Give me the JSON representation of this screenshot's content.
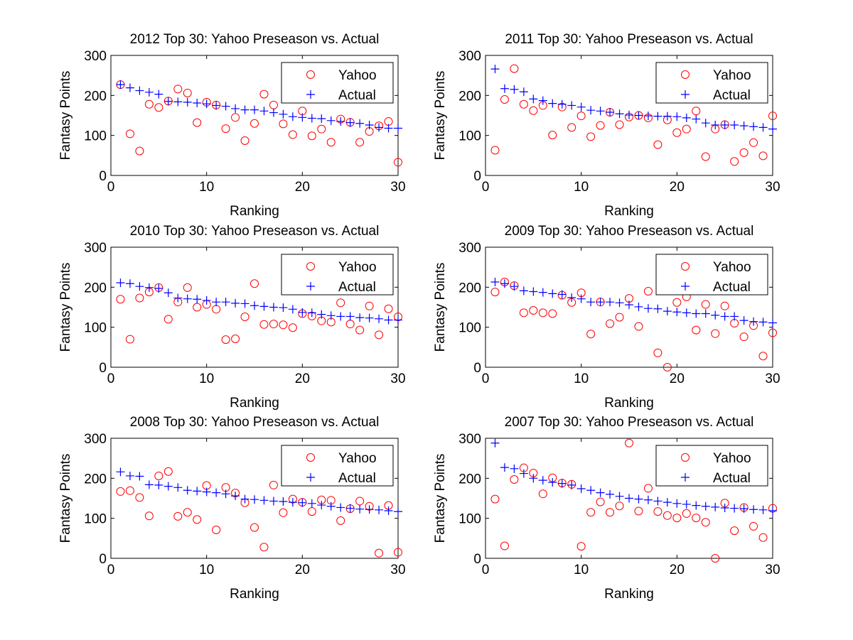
{
  "colors": {
    "yahoo": "#ff0000",
    "actual": "#0000ff",
    "axis": "#000000"
  },
  "chart_data": [
    {
      "type": "scatter",
      "title": "2012 Top 30: Yahoo Preseason vs. Actual",
      "xlabel": "Ranking",
      "ylabel": "Fantasy Points",
      "xlim": [
        0,
        30
      ],
      "ylim": [
        0,
        300
      ],
      "xticks": [
        0,
        10,
        20,
        30
      ],
      "yticks": [
        0,
        100,
        200,
        300
      ],
      "legend": "top-right",
      "x": [
        1,
        2,
        3,
        4,
        5,
        6,
        7,
        8,
        9,
        10,
        11,
        12,
        13,
        14,
        15,
        16,
        17,
        18,
        19,
        20,
        21,
        22,
        23,
        24,
        25,
        26,
        27,
        28,
        29,
        30
      ],
      "series": [
        {
          "name": "Yahoo",
          "marker": "circle",
          "color": "#ff0000",
          "values": [
            227,
            104,
            61,
            178,
            170,
            186,
            216,
            206,
            132,
            183,
            176,
            117,
            145,
            87,
            130,
            203,
            176,
            129,
            102,
            161,
            99,
            116,
            83,
            141,
            133,
            83,
            110,
            124,
            135,
            33
          ]
        },
        {
          "name": "Actual",
          "marker": "plus",
          "color": "#0000ff",
          "values": [
            227,
            219,
            212,
            208,
            203,
            185,
            184,
            183,
            181,
            179,
            175,
            173,
            167,
            164,
            164,
            161,
            157,
            153,
            147,
            145,
            143,
            142,
            137,
            135,
            132,
            130,
            126,
            120,
            118,
            118
          ]
        }
      ]
    },
    {
      "type": "scatter",
      "title": "2011 Top 30: Yahoo Preseason vs. Actual",
      "xlabel": "Ranking",
      "ylabel": "Fantasy Points",
      "xlim": [
        0,
        30
      ],
      "ylim": [
        0,
        300
      ],
      "xticks": [
        0,
        10,
        20,
        30
      ],
      "yticks": [
        0,
        100,
        200,
        300
      ],
      "legend": "top-right",
      "x": [
        1,
        2,
        3,
        4,
        5,
        6,
        7,
        8,
        9,
        10,
        11,
        12,
        13,
        14,
        15,
        16,
        17,
        18,
        19,
        20,
        21,
        22,
        23,
        24,
        25,
        26,
        27,
        28,
        29,
        30
      ],
      "series": [
        {
          "name": "Yahoo",
          "marker": "circle",
          "color": "#ff0000",
          "values": [
            63,
            190,
            267,
            178,
            162,
            175,
            101,
            171,
            120,
            149,
            97,
            125,
            158,
            127,
            146,
            150,
            144,
            77,
            139,
            107,
            116,
            161,
            47,
            116,
            127,
            35,
            57,
            82,
            49,
            149
          ]
        },
        {
          "name": "Actual",
          "marker": "plus",
          "color": "#0000ff",
          "values": [
            266,
            217,
            215,
            209,
            191,
            187,
            180,
            178,
            175,
            171,
            163,
            161,
            158,
            154,
            151,
            150,
            149,
            148,
            148,
            147,
            144,
            141,
            131,
            126,
            126,
            126,
            124,
            122,
            120,
            116
          ]
        }
      ]
    },
    {
      "type": "scatter",
      "title": "2010 Top 30: Yahoo Preseason vs. Actual",
      "xlabel": "Ranking",
      "ylabel": "Fantasy Points",
      "xlim": [
        0,
        30
      ],
      "ylim": [
        0,
        300
      ],
      "xticks": [
        0,
        10,
        20,
        30
      ],
      "yticks": [
        0,
        100,
        200,
        300
      ],
      "legend": "top-right",
      "x": [
        1,
        2,
        3,
        4,
        5,
        6,
        7,
        8,
        9,
        10,
        11,
        12,
        13,
        14,
        15,
        16,
        17,
        18,
        19,
        20,
        21,
        22,
        23,
        24,
        25,
        26,
        27,
        28,
        29,
        30
      ],
      "series": [
        {
          "name": "Yahoo",
          "marker": "circle",
          "color": "#ff0000",
          "values": [
            170,
            70,
            173,
            188,
            199,
            120,
            163,
            199,
            150,
            157,
            145,
            69,
            71,
            126,
            209,
            107,
            108,
            106,
            99,
            134,
            128,
            116,
            113,
            161,
            108,
            93,
            153,
            81,
            146,
            126
          ]
        },
        {
          "name": "Actual",
          "marker": "plus",
          "color": "#0000ff",
          "values": [
            211,
            209,
            202,
            199,
            197,
            186,
            173,
            171,
            170,
            167,
            163,
            163,
            160,
            159,
            154,
            152,
            150,
            149,
            145,
            137,
            136,
            132,
            129,
            127,
            127,
            124,
            123,
            121,
            118,
            118
          ]
        }
      ]
    },
    {
      "type": "scatter",
      "title": "2009 Top 30: Yahoo Preseason vs. Actual",
      "xlabel": "Ranking",
      "ylabel": "Fantasy Points",
      "xlim": [
        0,
        30
      ],
      "ylim": [
        0,
        300
      ],
      "xticks": [
        0,
        10,
        20,
        30
      ],
      "yticks": [
        0,
        100,
        200,
        300
      ],
      "legend": "top-right",
      "x": [
        1,
        2,
        3,
        4,
        5,
        6,
        7,
        8,
        9,
        10,
        11,
        12,
        13,
        14,
        15,
        16,
        17,
        18,
        19,
        20,
        21,
        22,
        23,
        24,
        25,
        26,
        27,
        28,
        29,
        30
      ],
      "series": [
        {
          "name": "Yahoo",
          "marker": "circle",
          "color": "#ff0000",
          "values": [
            188,
            213,
            204,
            136,
            142,
            136,
            134,
            180,
            162,
            186,
            83,
            163,
            109,
            125,
            172,
            102,
            190,
            36,
            0,
            162,
            176,
            93,
            157,
            84,
            153,
            110,
            76,
            104,
            28,
            86
          ]
        },
        {
          "name": "Actual",
          "marker": "plus",
          "color": "#0000ff",
          "values": [
            213,
            209,
            202,
            191,
            189,
            187,
            184,
            182,
            174,
            171,
            163,
            163,
            163,
            161,
            156,
            151,
            147,
            146,
            140,
            138,
            136,
            134,
            134,
            130,
            127,
            127,
            117,
            114,
            113,
            111
          ]
        }
      ]
    },
    {
      "type": "scatter",
      "title": "2008 Top 30: Yahoo Preseason vs. Actual",
      "xlabel": "Ranking",
      "ylabel": "Fantasy Points",
      "xlim": [
        0,
        30
      ],
      "ylim": [
        0,
        300
      ],
      "xticks": [
        0,
        10,
        20,
        30
      ],
      "yticks": [
        0,
        100,
        200,
        300
      ],
      "legend": "top-right",
      "x": [
        1,
        2,
        3,
        4,
        5,
        6,
        7,
        8,
        9,
        10,
        11,
        12,
        13,
        14,
        15,
        16,
        17,
        18,
        19,
        20,
        21,
        22,
        23,
        24,
        25,
        26,
        27,
        28,
        29,
        30
      ],
      "series": [
        {
          "name": "Yahoo",
          "marker": "circle",
          "color": "#ff0000",
          "values": [
            167,
            169,
            152,
            106,
            206,
            217,
            105,
            115,
            97,
            182,
            71,
            177,
            163,
            139,
            77,
            28,
            183,
            114,
            148,
            140,
            117,
            146,
            145,
            94,
            124,
            143,
            130,
            13,
            132,
            15
          ]
        },
        {
          "name": "Actual",
          "marker": "plus",
          "color": "#0000ff",
          "values": [
            216,
            206,
            205,
            184,
            183,
            180,
            177,
            170,
            168,
            166,
            164,
            161,
            156,
            148,
            147,
            145,
            143,
            142,
            140,
            139,
            137,
            133,
            130,
            127,
            125,
            123,
            122,
            121,
            119,
            117
          ]
        }
      ]
    },
    {
      "type": "scatter",
      "title": "2007 Top 30: Yahoo Preseason vs. Actual",
      "xlabel": "Ranking",
      "ylabel": "Fantasy Points",
      "xlim": [
        0,
        30
      ],
      "ylim": [
        0,
        300
      ],
      "xticks": [
        0,
        10,
        20,
        30
      ],
      "yticks": [
        0,
        100,
        200,
        300
      ],
      "legend": "top-right",
      "x": [
        1,
        2,
        3,
        4,
        5,
        6,
        7,
        8,
        9,
        10,
        11,
        12,
        13,
        14,
        15,
        16,
        17,
        18,
        19,
        20,
        21,
        22,
        23,
        24,
        25,
        26,
        27,
        28,
        29,
        30
      ],
      "series": [
        {
          "name": "Yahoo",
          "marker": "circle",
          "color": "#ff0000",
          "values": [
            148,
            31,
            197,
            226,
            213,
            161,
            201,
            188,
            185,
            30,
            115,
            141,
            115,
            131,
            288,
            118,
            175,
            117,
            107,
            101,
            112,
            101,
            90,
            0,
            138,
            69,
            127,
            80,
            52,
            125
          ]
        },
        {
          "name": "Actual",
          "marker": "plus",
          "color": "#0000ff",
          "values": [
            288,
            227,
            224,
            212,
            200,
            195,
            190,
            187,
            183,
            174,
            170,
            164,
            160,
            155,
            150,
            148,
            146,
            143,
            140,
            137,
            135,
            132,
            130,
            128,
            126,
            125,
            124,
            122,
            121,
            119
          ]
        }
      ]
    }
  ]
}
